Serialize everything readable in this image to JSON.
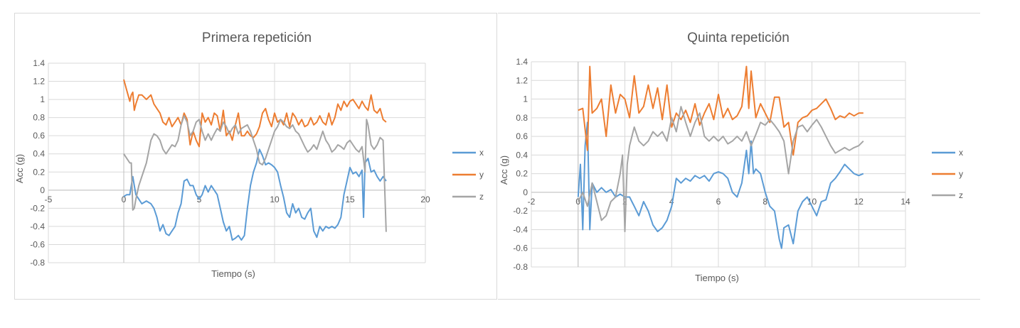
{
  "colors": {
    "x": "#5b9bd5",
    "y": "#ed7d31",
    "z": "#a5a5a5",
    "grid": "#d9d9d9",
    "text": "#595959"
  },
  "chart_data": [
    {
      "type": "line",
      "title": "Primera repetición",
      "xlabel": "Tiempo (s)",
      "ylabel": "Acc (g)",
      "xlim": [
        -5,
        20
      ],
      "ylim": [
        -0.8,
        1.4
      ],
      "xticks": [
        -5,
        0,
        5,
        10,
        15,
        20
      ],
      "yticks": [
        -0.8,
        -0.6,
        -0.4,
        -0.2,
        0,
        0.2,
        0.4,
        0.6,
        0.8,
        1,
        1.2,
        1.4
      ],
      "xtick_labels": [
        "-5",
        "0",
        "5",
        "10",
        "15",
        "20"
      ],
      "ytick_labels": [
        "-0.8",
        "-0.6",
        "-0.4",
        "-0.2",
        "0",
        "0.2",
        "0.4",
        "0.6",
        "0.8",
        "1",
        "1.2",
        "1.4"
      ],
      "grid": true,
      "legend": "right",
      "series": [
        {
          "name": "x",
          "x": [
            0,
            0.2,
            0.4,
            0.5,
            0.6,
            0.7,
            0.8,
            1.0,
            1.2,
            1.5,
            1.8,
            2.0,
            2.2,
            2.4,
            2.6,
            2.8,
            3.0,
            3.2,
            3.4,
            3.6,
            3.8,
            4.0,
            4.2,
            4.4,
            4.6,
            4.8,
            5.0,
            5.2,
            5.4,
            5.6,
            5.8,
            6.0,
            6.2,
            6.4,
            6.6,
            6.8,
            7.0,
            7.2,
            7.4,
            7.6,
            7.8,
            8.0,
            8.2,
            8.4,
            8.6,
            8.8,
            9.0,
            9.2,
            9.4,
            9.6,
            9.8,
            10.0,
            10.2,
            10.4,
            10.6,
            10.8,
            11.0,
            11.2,
            11.4,
            11.6,
            11.8,
            12.0,
            12.2,
            12.4,
            12.6,
            12.8,
            13.0,
            13.2,
            13.4,
            13.6,
            13.8,
            14.0,
            14.2,
            14.4,
            14.6,
            14.8,
            15.0,
            15.2,
            15.4,
            15.6,
            15.8,
            15.9,
            16.0,
            16.2,
            16.4,
            16.6,
            16.8,
            17.0,
            17.2,
            17.4
          ],
          "values": [
            -0.07,
            -0.05,
            -0.05,
            0.05,
            0.15,
            0.05,
            -0.05,
            -0.1,
            -0.15,
            -0.12,
            -0.15,
            -0.2,
            -0.3,
            -0.45,
            -0.38,
            -0.48,
            -0.5,
            -0.45,
            -0.4,
            -0.25,
            -0.15,
            0.1,
            0.12,
            0.05,
            0.05,
            -0.05,
            -0.1,
            -0.05,
            0.05,
            -0.02,
            0.05,
            0.0,
            -0.05,
            -0.2,
            -0.35,
            -0.45,
            -0.4,
            -0.55,
            -0.53,
            -0.5,
            -0.55,
            -0.5,
            -0.2,
            0.05,
            0.2,
            0.3,
            0.45,
            0.38,
            0.28,
            0.3,
            0.28,
            0.25,
            0.2,
            0.05,
            -0.08,
            -0.25,
            -0.3,
            -0.15,
            -0.25,
            -0.2,
            -0.3,
            -0.32,
            -0.25,
            -0.2,
            -0.45,
            -0.52,
            -0.4,
            -0.45,
            -0.4,
            -0.42,
            -0.4,
            -0.42,
            -0.38,
            -0.3,
            -0.05,
            0.1,
            0.25,
            0.18,
            0.2,
            0.15,
            0.22,
            -0.3,
            0.3,
            0.35,
            0.2,
            0.22,
            0.15,
            0.1,
            0.15,
            0.1
          ]
        },
        {
          "name": "y",
          "x": [
            0,
            0.2,
            0.4,
            0.5,
            0.6,
            0.7,
            0.8,
            1.0,
            1.2,
            1.5,
            1.8,
            2.0,
            2.2,
            2.4,
            2.6,
            2.8,
            3.0,
            3.2,
            3.4,
            3.6,
            3.8,
            4.0,
            4.2,
            4.4,
            4.6,
            4.8,
            5.0,
            5.2,
            5.4,
            5.6,
            5.8,
            6.0,
            6.2,
            6.4,
            6.6,
            6.8,
            7.0,
            7.2,
            7.4,
            7.6,
            7.8,
            8.0,
            8.2,
            8.4,
            8.6,
            8.8,
            9.0,
            9.2,
            9.4,
            9.6,
            9.8,
            10.0,
            10.2,
            10.4,
            10.6,
            10.8,
            11.0,
            11.2,
            11.4,
            11.6,
            11.8,
            12.0,
            12.2,
            12.4,
            12.6,
            12.8,
            13.0,
            13.2,
            13.4,
            13.6,
            13.8,
            14.0,
            14.2,
            14.4,
            14.6,
            14.8,
            15.0,
            15.2,
            15.4,
            15.6,
            15.8,
            16.0,
            16.2,
            16.4,
            16.6,
            16.8,
            17.0,
            17.2,
            17.4
          ],
          "values": [
            1.22,
            1.1,
            0.98,
            1.05,
            1.08,
            0.88,
            0.95,
            1.05,
            1.05,
            1.0,
            1.05,
            0.95,
            0.9,
            0.85,
            0.75,
            0.72,
            0.8,
            0.7,
            0.75,
            0.8,
            0.72,
            0.85,
            0.78,
            0.5,
            0.65,
            0.55,
            0.48,
            0.85,
            0.75,
            0.8,
            0.72,
            0.85,
            0.82,
            0.65,
            0.88,
            0.6,
            0.65,
            0.55,
            0.72,
            0.85,
            0.6,
            0.6,
            0.65,
            0.6,
            0.58,
            0.62,
            0.7,
            0.85,
            0.9,
            0.78,
            0.7,
            0.85,
            0.75,
            0.78,
            0.72,
            0.85,
            0.7,
            0.85,
            0.8,
            0.72,
            0.78,
            0.7,
            0.72,
            0.8,
            0.72,
            0.75,
            0.82,
            0.75,
            0.72,
            0.85,
            0.72,
            0.8,
            0.95,
            0.88,
            0.98,
            0.92,
            0.98,
            1.0,
            0.95,
            0.9,
            0.98,
            0.92,
            0.88,
            1.05,
            0.88,
            0.85,
            0.9,
            0.78,
            0.75
          ]
        },
        {
          "name": "z",
          "x": [
            0,
            0.2,
            0.4,
            0.5,
            0.6,
            0.7,
            0.8,
            1.0,
            1.2,
            1.5,
            1.8,
            2.0,
            2.2,
            2.4,
            2.6,
            2.8,
            3.0,
            3.2,
            3.4,
            3.6,
            3.8,
            4.0,
            4.2,
            4.4,
            4.6,
            4.8,
            5.0,
            5.2,
            5.4,
            5.6,
            5.8,
            6.0,
            6.2,
            6.4,
            6.6,
            6.8,
            7.0,
            7.2,
            7.4,
            7.6,
            7.8,
            8.0,
            8.2,
            8.4,
            8.6,
            8.8,
            9.0,
            9.2,
            9.4,
            9.6,
            9.8,
            10.0,
            10.2,
            10.4,
            10.6,
            10.8,
            11.0,
            11.2,
            11.4,
            11.6,
            11.8,
            12.0,
            12.2,
            12.4,
            12.6,
            12.8,
            13.0,
            13.2,
            13.4,
            13.6,
            13.8,
            14.0,
            14.2,
            14.4,
            14.6,
            14.8,
            15.0,
            15.2,
            15.4,
            15.6,
            15.8,
            16.0,
            16.1,
            16.2,
            16.4,
            16.6,
            16.8,
            17.0,
            17.2,
            17.4
          ],
          "values": [
            0.4,
            0.35,
            0.3,
            0.3,
            -0.22,
            -0.2,
            -0.1,
            0.05,
            0.15,
            0.3,
            0.55,
            0.62,
            0.6,
            0.55,
            0.45,
            0.4,
            0.45,
            0.5,
            0.48,
            0.55,
            0.72,
            0.82,
            0.75,
            0.6,
            0.65,
            0.75,
            0.78,
            0.65,
            0.55,
            0.62,
            0.55,
            0.62,
            0.68,
            0.65,
            0.75,
            0.7,
            0.62,
            0.68,
            0.72,
            0.62,
            0.68,
            0.7,
            0.72,
            0.65,
            0.55,
            0.45,
            0.3,
            0.28,
            0.35,
            0.45,
            0.55,
            0.65,
            0.7,
            0.78,
            0.75,
            0.7,
            0.68,
            0.72,
            0.65,
            0.62,
            0.55,
            0.48,
            0.42,
            0.45,
            0.5,
            0.45,
            0.55,
            0.65,
            0.55,
            0.5,
            0.42,
            0.45,
            0.5,
            0.48,
            0.45,
            0.52,
            0.55,
            0.5,
            0.45,
            0.42,
            0.48,
            0.2,
            0.78,
            0.72,
            0.5,
            0.45,
            0.5,
            0.58,
            0.55,
            -0.46
          ]
        }
      ]
    },
    {
      "type": "line",
      "title": "Quinta repetición",
      "xlabel": "Tiempo (s)",
      "ylabel": "Acc (g)",
      "xlim": [
        -2,
        14
      ],
      "ylim": [
        -0.8,
        1.4
      ],
      "xticks": [
        -2,
        0,
        2,
        4,
        6,
        8,
        10,
        12,
        14
      ],
      "yticks": [
        -0.8,
        -0.6,
        -0.4,
        -0.2,
        0,
        0.2,
        0.4,
        0.6,
        0.8,
        1,
        1.2,
        1.4
      ],
      "xtick_labels": [
        "-2",
        "0",
        "2",
        "4",
        "6",
        "8",
        "10",
        "12",
        "14"
      ],
      "ytick_labels": [
        "-0.8",
        "-0.6",
        "-0.4",
        "-0.2",
        "0",
        "0.2",
        "0.4",
        "0.6",
        "0.8",
        "1",
        "1.2",
        "1.4"
      ],
      "grid": true,
      "legend": "right",
      "series": [
        {
          "name": "x",
          "x": [
            0,
            0.1,
            0.2,
            0.3,
            0.4,
            0.5,
            0.6,
            0.8,
            1.0,
            1.2,
            1.4,
            1.6,
            1.8,
            2.0,
            2.2,
            2.4,
            2.6,
            2.8,
            3.0,
            3.2,
            3.4,
            3.6,
            3.8,
            4.0,
            4.2,
            4.4,
            4.6,
            4.8,
            5.0,
            5.2,
            5.4,
            5.6,
            5.8,
            6.0,
            6.2,
            6.4,
            6.6,
            6.8,
            7.0,
            7.2,
            7.3,
            7.4,
            7.5,
            7.6,
            7.8,
            8.0,
            8.2,
            8.4,
            8.6,
            8.7,
            8.8,
            9.0,
            9.2,
            9.4,
            9.6,
            9.8,
            10.0,
            10.2,
            10.4,
            10.6,
            10.8,
            11.0,
            11.2,
            11.4,
            11.6,
            11.8,
            12.0,
            12.2
          ],
          "values": [
            -0.05,
            0.3,
            -0.4,
            0.5,
            0.75,
            -0.4,
            0.1,
            0.0,
            0.05,
            0.0,
            0.03,
            -0.05,
            -0.02,
            -0.05,
            -0.05,
            -0.15,
            -0.25,
            -0.1,
            -0.2,
            -0.35,
            -0.42,
            -0.38,
            -0.3,
            -0.15,
            0.15,
            0.1,
            0.15,
            0.12,
            0.18,
            0.15,
            0.18,
            0.12,
            0.2,
            0.22,
            0.2,
            0.15,
            0.0,
            -0.05,
            0.1,
            0.45,
            0.2,
            0.55,
            0.2,
            0.25,
            0.2,
            0.0,
            -0.15,
            -0.2,
            -0.5,
            -0.6,
            -0.38,
            -0.35,
            -0.55,
            -0.2,
            -0.1,
            -0.05,
            -0.15,
            -0.25,
            -0.1,
            -0.08,
            0.1,
            0.15,
            0.22,
            0.3,
            0.25,
            0.2,
            0.18,
            0.2
          ]
        },
        {
          "name": "y",
          "x": [
            0,
            0.2,
            0.4,
            0.5,
            0.6,
            0.8,
            1.0,
            1.2,
            1.4,
            1.6,
            1.8,
            2.0,
            2.2,
            2.4,
            2.6,
            2.8,
            3.0,
            3.2,
            3.4,
            3.6,
            3.8,
            4.0,
            4.2,
            4.4,
            4.6,
            4.8,
            5.0,
            5.2,
            5.4,
            5.6,
            5.8,
            6.0,
            6.2,
            6.4,
            6.6,
            6.8,
            7.0,
            7.2,
            7.3,
            7.4,
            7.6,
            7.8,
            8.0,
            8.2,
            8.4,
            8.6,
            8.8,
            9.0,
            9.2,
            9.4,
            9.6,
            9.8,
            10.0,
            10.2,
            10.4,
            10.6,
            10.8,
            11.0,
            11.2,
            11.4,
            11.6,
            11.8,
            12.0,
            12.2
          ],
          "values": [
            0.88,
            0.9,
            0.45,
            1.35,
            0.85,
            0.9,
            1.0,
            0.6,
            1.15,
            0.85,
            1.05,
            1.0,
            0.8,
            1.25,
            0.85,
            0.92,
            1.15,
            0.9,
            1.12,
            0.78,
            1.15,
            0.7,
            0.85,
            0.78,
            0.88,
            0.75,
            0.95,
            0.72,
            0.85,
            0.95,
            0.78,
            1.05,
            0.8,
            0.9,
            0.78,
            0.82,
            0.92,
            1.35,
            0.9,
            1.3,
            0.8,
            0.95,
            0.85,
            0.75,
            1.02,
            1.02,
            0.7,
            0.75,
            0.4,
            0.75,
            0.8,
            0.82,
            0.88,
            0.9,
            0.95,
            1.0,
            0.9,
            0.78,
            0.82,
            0.8,
            0.85,
            0.82,
            0.85,
            0.85
          ]
        },
        {
          "name": "z",
          "x": [
            0,
            0.2,
            0.4,
            0.6,
            0.8,
            1.0,
            1.2,
            1.4,
            1.6,
            1.8,
            1.9,
            2.0,
            2.1,
            2.2,
            2.4,
            2.6,
            2.8,
            3.0,
            3.2,
            3.4,
            3.6,
            3.8,
            4.0,
            4.2,
            4.4,
            4.6,
            4.8,
            5.0,
            5.2,
            5.4,
            5.6,
            5.8,
            6.0,
            6.2,
            6.4,
            6.6,
            6.8,
            7.0,
            7.2,
            7.4,
            7.6,
            7.8,
            8.0,
            8.2,
            8.4,
            8.6,
            8.8,
            9.0,
            9.2,
            9.4,
            9.6,
            9.8,
            10.0,
            10.2,
            10.4,
            10.6,
            10.8,
            11.0,
            11.2,
            11.4,
            11.6,
            11.8,
            12.0,
            12.2
          ],
          "values": [
            -0.1,
            0.0,
            -0.15,
            0.1,
            -0.1,
            -0.3,
            -0.25,
            -0.1,
            -0.05,
            0.2,
            0.4,
            -0.42,
            0.3,
            0.5,
            0.7,
            0.55,
            0.5,
            0.55,
            0.65,
            0.6,
            0.65,
            0.55,
            0.8,
            0.65,
            0.92,
            0.75,
            0.6,
            0.75,
            0.85,
            0.6,
            0.55,
            0.6,
            0.55,
            0.6,
            0.52,
            0.55,
            0.6,
            0.55,
            0.65,
            0.5,
            0.62,
            0.75,
            0.72,
            0.78,
            0.72,
            0.65,
            0.55,
            0.2,
            0.55,
            0.7,
            0.72,
            0.65,
            0.72,
            0.78,
            0.7,
            0.6,
            0.5,
            0.42,
            0.45,
            0.48,
            0.45,
            0.48,
            0.5,
            0.55
          ]
        }
      ]
    }
  ]
}
